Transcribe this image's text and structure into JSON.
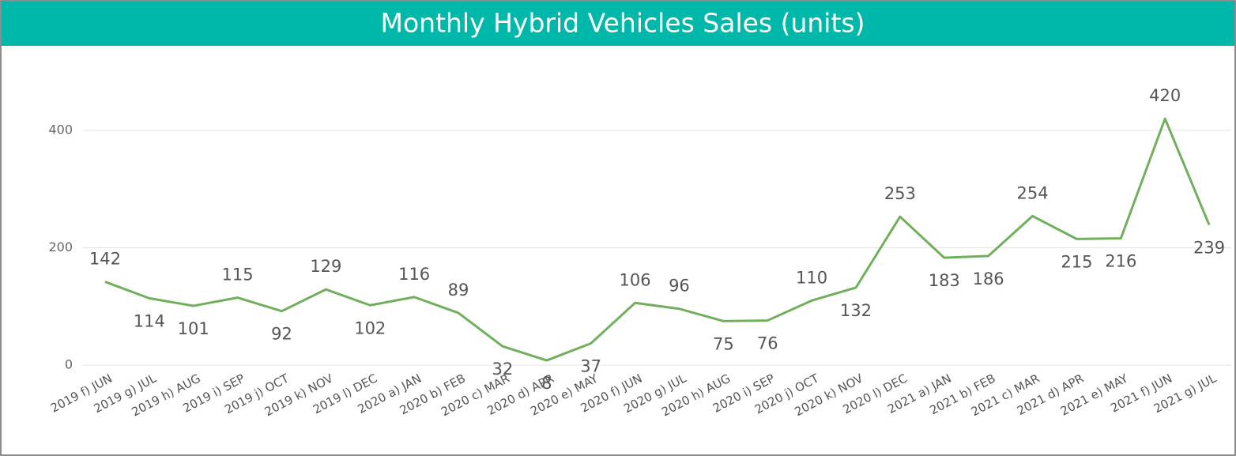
{
  "chart_data": {
    "type": "line",
    "title": "Monthly Hybrid Vehicles Sales (units)",
    "categories": [
      "2019 f) JUN",
      "2019 g) JUL",
      "2019 h) AUG",
      "2019 i) SEP",
      "2019 j) OCT",
      "2019 k) NOV",
      "2019 l) DEC",
      "2020 a) JAN",
      "2020 b) FEB",
      "2020 c) MAR",
      "2020 d) APR",
      "2020 e) MAY",
      "2020 f) JUN",
      "2020 g) JUL",
      "2020 h) AUG",
      "2020 i) SEP",
      "2020 j) OCT",
      "2020 k) NOV",
      "2020 l) DEC",
      "2021 a) JAN",
      "2021 b) FEB",
      "2021 c) MAR",
      "2021 d) APR",
      "2021 e) MAY",
      "2021 f) JUN",
      "2021 g) JUL"
    ],
    "values": [
      142,
      114,
      101,
      115,
      92,
      129,
      102,
      116,
      89,
      32,
      8,
      37,
      106,
      96,
      75,
      76,
      110,
      132,
      253,
      183,
      186,
      254,
      215,
      216,
      420,
      239
    ],
    "color": "#70b05c",
    "ylim": [
      0,
      480
    ],
    "yticks": [
      0,
      200,
      400
    ],
    "grid": true
  }
}
